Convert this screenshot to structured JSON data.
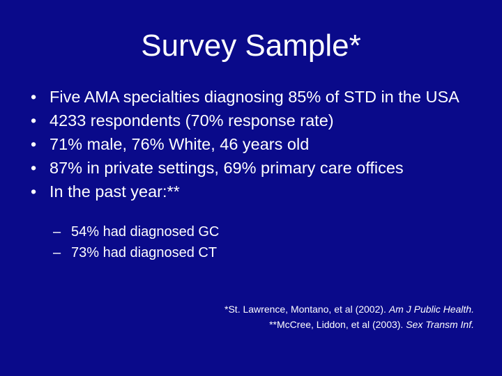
{
  "slide": {
    "title": "Survey Sample*",
    "bullet_glyph": "•",
    "sub_bullet_glyph": "–",
    "bullets": [
      "Five AMA specialties diagnosing 85% of STD in the USA",
      "4233 respondents (70% response rate)",
      "71% male, 76% White, 46 years old",
      "87% in private settings, 69% primary care offices",
      "In the past year:**"
    ],
    "sub_bullets": [
      "54% had diagnosed GC",
      "73% had diagnosed CT"
    ],
    "references": [
      {
        "text": "*St. Lawrence, Montano, et al (2002).  ",
        "journal": "Am J Public Health."
      },
      {
        "text": "**McCree, Liddon, et al (2003).  ",
        "journal": "Sex Transm Inf."
      }
    ]
  },
  "colors": {
    "background": "#0a0a8a",
    "text": "#ffffff"
  }
}
